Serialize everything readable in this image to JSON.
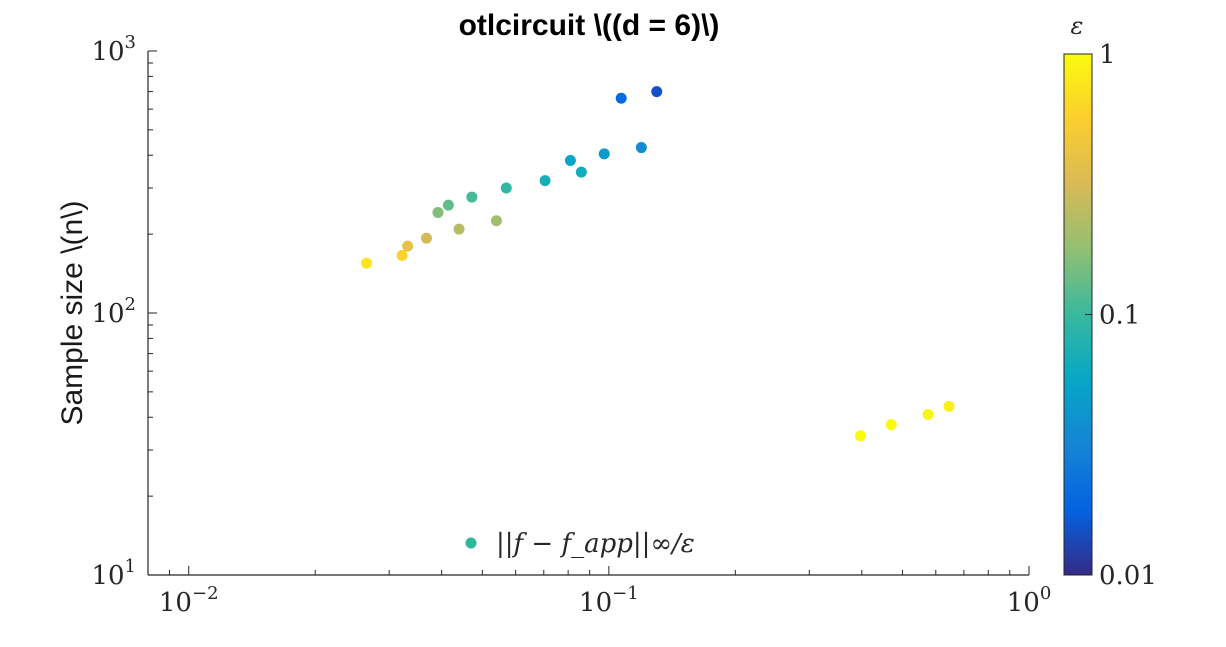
{
  "chart_data": {
    "type": "scatter",
    "title": "otlcircuit \\((d = 6)\\)",
    "xlabel": "",
    "ylabel": "Sample size \\(n\\)",
    "xscale": "log",
    "yscale": "log",
    "xlim": [
      0.008,
      1
    ],
    "ylim": [
      10,
      1000
    ],
    "x_ticks": [
      {
        "base": "10",
        "exp": "−2"
      },
      {
        "base": "10",
        "exp": "−1"
      },
      {
        "base": "10",
        "exp": "0"
      }
    ],
    "y_ticks": [
      {
        "base": "10",
        "exp": "1"
      },
      {
        "base": "10",
        "exp": "2"
      },
      {
        "base": "10",
        "exp": "3"
      }
    ],
    "grid": false,
    "legend": {
      "placement": "bottom-center",
      "text": "||f − f_app||∞/ε",
      "color": "#2eb89a"
    },
    "colorbar": {
      "label": "ε",
      "scale": "log",
      "range": [
        0.01,
        1
      ],
      "ticks": [
        "1",
        "0.1",
        "0.01"
      ],
      "colormap": "parula"
    },
    "points": [
      {
        "x": 0.0265,
        "y": 155,
        "eps": 0.75
      },
      {
        "x": 0.0322,
        "y": 166,
        "eps": 0.6
      },
      {
        "x": 0.0332,
        "y": 180,
        "eps": 0.4
      },
      {
        "x": 0.0368,
        "y": 193,
        "eps": 0.3
      },
      {
        "x": 0.0392,
        "y": 242,
        "eps": 0.16
      },
      {
        "x": 0.0415,
        "y": 258,
        "eps": 0.13
      },
      {
        "x": 0.044,
        "y": 209,
        "eps": 0.24
      },
      {
        "x": 0.0472,
        "y": 277,
        "eps": 0.11
      },
      {
        "x": 0.054,
        "y": 225,
        "eps": 0.2
      },
      {
        "x": 0.057,
        "y": 300,
        "eps": 0.09
      },
      {
        "x": 0.0705,
        "y": 320,
        "eps": 0.07
      },
      {
        "x": 0.081,
        "y": 382,
        "eps": 0.055
      },
      {
        "x": 0.086,
        "y": 345,
        "eps": 0.065
      },
      {
        "x": 0.0975,
        "y": 405,
        "eps": 0.045
      },
      {
        "x": 0.107,
        "y": 660,
        "eps": 0.02
      },
      {
        "x": 0.1195,
        "y": 428,
        "eps": 0.035
      },
      {
        "x": 0.13,
        "y": 700,
        "eps": 0.015
      },
      {
        "x": 0.397,
        "y": 34,
        "eps": 1.0
      },
      {
        "x": 0.47,
        "y": 37.5,
        "eps": 0.98
      },
      {
        "x": 0.575,
        "y": 41,
        "eps": 0.95
      },
      {
        "x": 0.645,
        "y": 44,
        "eps": 0.85
      }
    ]
  }
}
